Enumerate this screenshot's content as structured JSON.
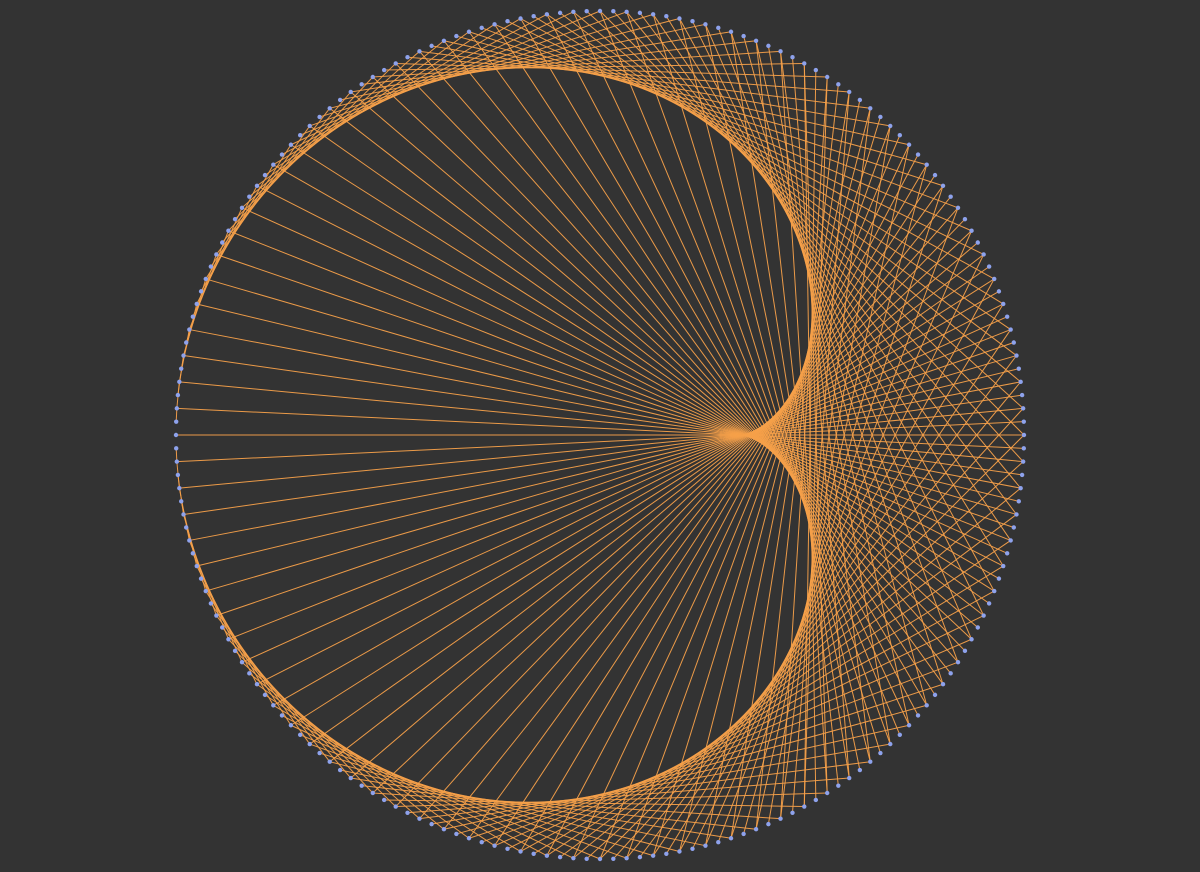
{
  "canvas": {
    "background_color": "#333333"
  },
  "string_art": {
    "type": "modular-multiplication-circle",
    "point_count": 200,
    "multiplier": 2,
    "chord_color": "#f5a04a",
    "point_color": "#8ea2ec",
    "rotation_degrees": 180
  }
}
